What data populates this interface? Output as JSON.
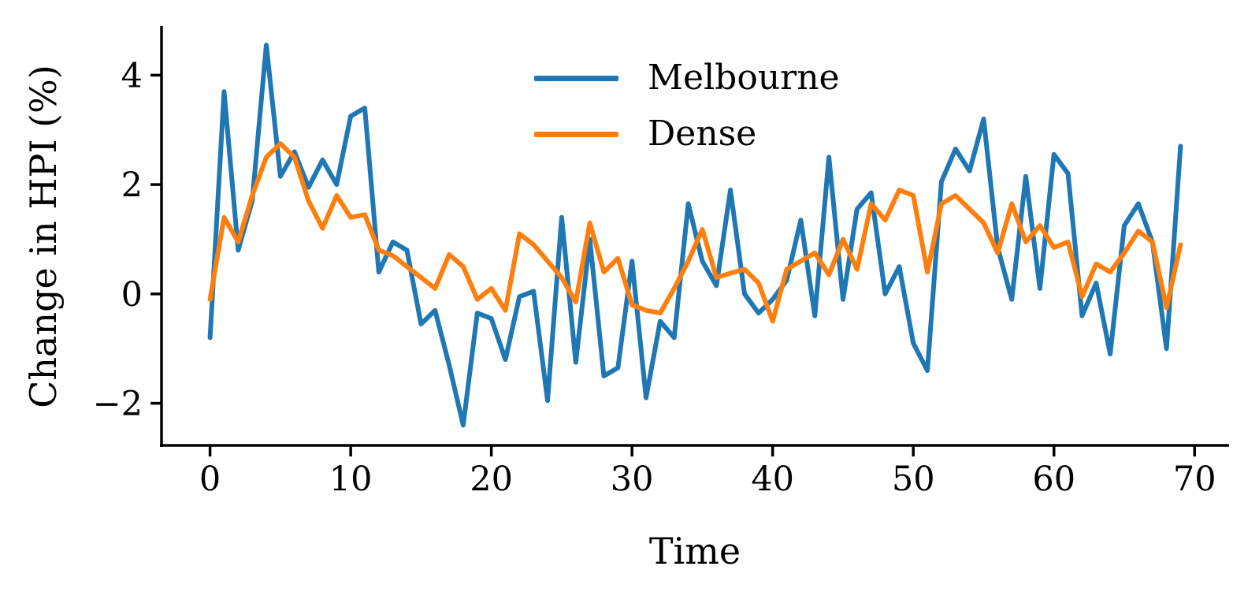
{
  "figure": {
    "background": "#ffffff",
    "text_color": "#000000",
    "axis_color": "#000000",
    "ylabel": "Change in HPI (%)",
    "xlabel": "Time"
  },
  "chart_data": {
    "type": "line",
    "title": "",
    "xlabel": "Time",
    "ylabel": "Change in HPI (%)",
    "grid": false,
    "legend_position": "upper center",
    "xlim": [
      -3.45,
      72.45
    ],
    "ylim": [
      -2.77,
      4.87
    ],
    "xticks": [
      0,
      10,
      20,
      30,
      40,
      50,
      60,
      70
    ],
    "yticks": [
      -2,
      0,
      2,
      4
    ],
    "x": [
      0,
      1,
      2,
      3,
      4,
      5,
      6,
      7,
      8,
      9,
      10,
      11,
      12,
      13,
      14,
      15,
      16,
      17,
      18,
      19,
      20,
      21,
      22,
      23,
      24,
      25,
      26,
      27,
      28,
      29,
      30,
      31,
      32,
      33,
      34,
      35,
      36,
      37,
      38,
      39,
      40,
      41,
      42,
      43,
      44,
      45,
      46,
      47,
      48,
      49,
      50,
      51,
      52,
      53,
      54,
      55,
      56,
      57,
      58,
      59,
      60,
      61,
      62,
      63,
      64,
      65,
      66,
      67,
      68,
      69
    ],
    "series": [
      {
        "name": "Melbourne",
        "color": "#1f77b4",
        "values": [
          -0.8,
          3.7,
          0.8,
          1.7,
          4.55,
          2.15,
          2.6,
          1.95,
          2.45,
          2.0,
          3.25,
          3.4,
          0.4,
          0.95,
          0.8,
          -0.55,
          -0.3,
          -1.3,
          -2.4,
          -0.35,
          -0.45,
          -1.2,
          -0.05,
          0.05,
          -1.95,
          1.4,
          -1.25,
          1.0,
          -1.5,
          -1.35,
          0.6,
          -1.9,
          -0.5,
          -0.8,
          1.65,
          0.6,
          0.15,
          1.9,
          0.0,
          -0.35,
          -0.1,
          0.25,
          1.35,
          -0.4,
          2.5,
          -0.1,
          1.55,
          1.85,
          0.0,
          0.5,
          -0.9,
          -1.4,
          2.05,
          2.65,
          2.25,
          3.2,
          0.85,
          -0.1,
          2.15,
          0.1,
          2.55,
          2.2,
          -0.4,
          0.2,
          -1.1,
          1.25,
          1.65,
          0.95,
          -1.0,
          2.7
        ]
      },
      {
        "name": "Dense",
        "color": "#ff7f0e",
        "values": [
          -0.1,
          1.4,
          0.95,
          1.8,
          2.5,
          2.75,
          2.5,
          1.7,
          1.2,
          1.8,
          1.4,
          1.45,
          0.8,
          0.7,
          0.5,
          0.3,
          0.1,
          0.72,
          0.5,
          -0.1,
          0.1,
          -0.3,
          1.1,
          0.9,
          0.6,
          0.3,
          -0.15,
          1.3,
          0.4,
          0.65,
          -0.2,
          -0.3,
          -0.35,
          0.1,
          0.6,
          1.18,
          0.3,
          0.38,
          0.45,
          0.2,
          -0.5,
          0.45,
          0.6,
          0.75,
          0.35,
          1.0,
          0.45,
          1.65,
          1.35,
          1.9,
          1.8,
          0.4,
          1.65,
          1.8,
          1.55,
          1.3,
          0.75,
          1.65,
          0.95,
          1.25,
          0.85,
          0.95,
          -0.05,
          0.55,
          0.4,
          0.75,
          1.15,
          0.95,
          -0.25,
          0.9
        ]
      }
    ]
  }
}
